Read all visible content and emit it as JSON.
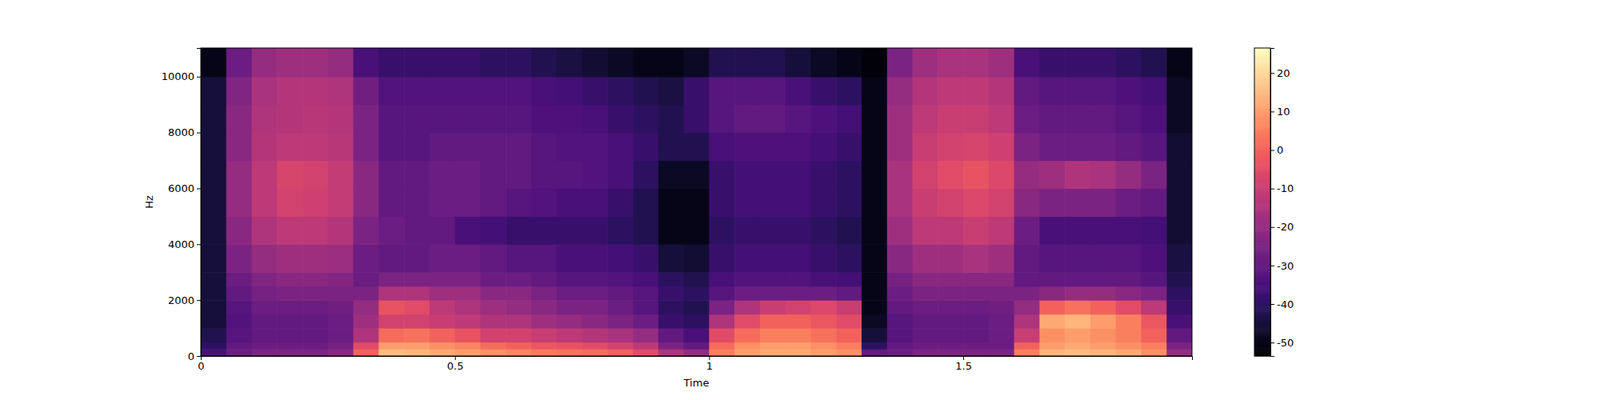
{
  "chart_data": {
    "type": "heatmap",
    "xlabel": "Time",
    "ylabel": "Hz",
    "xlim": [
      0,
      1.95
    ],
    "ylim": [
      0,
      11025
    ],
    "xticks": [
      0,
      0.5,
      1,
      1.5
    ],
    "yticks": [
      0,
      2000,
      4000,
      6000,
      8000,
      10000
    ],
    "x_bins": [
      0,
      0.05,
      0.1,
      0.15,
      0.2,
      0.25,
      0.3,
      0.35,
      0.4,
      0.45,
      0.5,
      0.55,
      0.6,
      0.65,
      0.7,
      0.75,
      0.8,
      0.85,
      0.9,
      0.95,
      1,
      1.05,
      1.1,
      1.15,
      1.2,
      1.25,
      1.3,
      1.35,
      1.4,
      1.45,
      1.5,
      1.55,
      1.6,
      1.65,
      1.7,
      1.75,
      1.8,
      1.85,
      1.9,
      1.95
    ],
    "y_bins": [
      0,
      250,
      500,
      1000,
      1500,
      2000,
      2500,
      3000,
      4000,
      5000,
      6000,
      7000,
      8000,
      9000,
      10000,
      11025
    ],
    "values": [
      [
        -35,
        -40,
        -42,
        -45,
        -45,
        -45,
        -45,
        -45,
        -45,
        -45,
        -45,
        -45,
        -45,
        -45,
        -50
      ],
      [
        -28,
        -30,
        -32,
        -33,
        -32,
        -30,
        -28,
        -25,
        -22,
        -20,
        -20,
        -22,
        -22,
        -24,
        -28
      ],
      [
        -25,
        -28,
        -30,
        -30,
        -28,
        -26,
        -24,
        -20,
        -15,
        -12,
        -12,
        -14,
        -15,
        -16,
        -20
      ],
      [
        -25,
        -28,
        -30,
        -30,
        -28,
        -25,
        -22,
        -18,
        -12,
        -8,
        -7,
        -12,
        -14,
        -14,
        -18
      ],
      [
        -25,
        -28,
        -30,
        -30,
        -28,
        -25,
        -22,
        -18,
        -12,
        -9,
        -8,
        -12,
        -13,
        -14,
        -18
      ],
      [
        -22,
        -26,
        -28,
        -28,
        -27,
        -25,
        -23,
        -19,
        -14,
        -11,
        -11,
        -13,
        -14,
        -15,
        -20
      ],
      [
        0,
        -5,
        -15,
        -18,
        -20,
        -25,
        -28,
        -28,
        -25,
        -22,
        -22,
        -25,
        -25,
        -27,
        -35
      ],
      [
        15,
        10,
        2,
        -8,
        -3,
        -15,
        -25,
        -30,
        -28,
        -30,
        -30,
        -32,
        -32,
        -33,
        -38
      ],
      [
        14,
        10,
        3,
        -8,
        -5,
        -15,
        -25,
        -30,
        -30,
        -30,
        -30,
        -32,
        -32,
        -33,
        -38
      ],
      [
        12,
        8,
        0,
        -10,
        -12,
        -18,
        -25,
        -28,
        -30,
        -28,
        -28,
        -30,
        -32,
        -33,
        -38
      ],
      [
        10,
        6,
        -3,
        -12,
        -15,
        -18,
        -25,
        -28,
        -35,
        -28,
        -28,
        -30,
        -32,
        -33,
        -38
      ],
      [
        8,
        2,
        -8,
        -15,
        -18,
        -22,
        -28,
        -30,
        -36,
        -30,
        -30,
        -30,
        -32,
        -33,
        -40
      ],
      [
        6,
        0,
        -8,
        -15,
        -20,
        -22,
        -28,
        -32,
        -38,
        -32,
        -30,
        -30,
        -32,
        -33,
        -40
      ],
      [
        4,
        -2,
        -10,
        -18,
        -22,
        -25,
        -30,
        -32,
        -38,
        -33,
        -32,
        -32,
        -34,
        -35,
        -42
      ],
      [
        3,
        -3,
        -12,
        -20,
        -25,
        -28,
        -32,
        -35,
        -38,
        -35,
        -32,
        -33,
        -34,
        -36,
        -44
      ],
      [
        2,
        -5,
        -14,
        -22,
        -25,
        -28,
        -32,
        -35,
        -38,
        -35,
        -33,
        -33,
        -35,
        -38,
        -46
      ],
      [
        0,
        -8,
        -16,
        -25,
        -28,
        -30,
        -33,
        -36,
        -40,
        -38,
        -35,
        -35,
        -38,
        -40,
        -48
      ],
      [
        -5,
        -12,
        -20,
        -28,
        -32,
        -32,
        -35,
        -38,
        -42,
        -42,
        -40,
        -38,
        -40,
        -42,
        -50
      ],
      [
        -15,
        -25,
        -30,
        -38,
        -40,
        -38,
        -40,
        -45,
        -50,
        -50,
        -48,
        -42,
        -42,
        -44,
        -50
      ],
      [
        -20,
        -30,
        -35,
        -40,
        -42,
        -40,
        -42,
        -46,
        -50,
        -50,
        -48,
        -42,
        -38,
        -38,
        -48
      ],
      [
        5,
        2,
        -5,
        -15,
        -25,
        -32,
        -35,
        -38,
        -40,
        -38,
        -38,
        -35,
        -32,
        -32,
        -42
      ],
      [
        10,
        8,
        2,
        -5,
        -15,
        -28,
        -33,
        -36,
        -38,
        -36,
        -36,
        -34,
        -30,
        -32,
        -42
      ],
      [
        12,
        10,
        5,
        0,
        -10,
        -28,
        -33,
        -36,
        -38,
        -36,
        -36,
        -34,
        -30,
        -32,
        -42
      ],
      [
        12,
        10,
        5,
        0,
        -8,
        -28,
        -33,
        -36,
        -38,
        -36,
        -36,
        -34,
        -32,
        -35,
        -45
      ],
      [
        10,
        8,
        3,
        -2,
        -6,
        -28,
        -35,
        -38,
        -40,
        -38,
        -38,
        -36,
        -34,
        -38,
        -48
      ],
      [
        8,
        5,
        0,
        -5,
        -10,
        -30,
        -36,
        -40,
        -42,
        -40,
        -40,
        -38,
        -36,
        -40,
        -50
      ],
      [
        -30,
        -40,
        -45,
        -48,
        -50,
        -50,
        -50,
        -50,
        -50,
        -50,
        -50,
        -50,
        -50,
        -50,
        -52
      ],
      [
        -28,
        -30,
        -32,
        -32,
        -30,
        -28,
        -26,
        -22,
        -18,
        -16,
        -16,
        -18,
        -18,
        -20,
        -25
      ],
      [
        -25,
        -28,
        -30,
        -30,
        -28,
        -25,
        -22,
        -18,
        -12,
        -10,
        -8,
        -10,
        -12,
        -14,
        -18
      ],
      [
        -25,
        -28,
        -30,
        -30,
        -28,
        -25,
        -22,
        -18,
        -12,
        -8,
        -5,
        -8,
        -10,
        -12,
        -16
      ],
      [
        -25,
        -28,
        -30,
        -30,
        -28,
        -25,
        -22,
        -16,
        -10,
        -6,
        -3,
        -7,
        -10,
        -12,
        -16
      ],
      [
        -25,
        -28,
        -28,
        -28,
        -27,
        -25,
        -22,
        -18,
        -12,
        -8,
        -6,
        -9,
        -12,
        -14,
        -18
      ],
      [
        5,
        0,
        -10,
        -15,
        -20,
        -25,
        -30,
        -30,
        -28,
        -22,
        -20,
        -25,
        -28,
        -30,
        -35
      ],
      [
        14,
        10,
        8,
        12,
        0,
        -22,
        -30,
        -32,
        -35,
        -25,
        -18,
        -28,
        -30,
        -32,
        -38
      ],
      [
        15,
        12,
        10,
        14,
        3,
        -20,
        -30,
        -32,
        -35,
        -25,
        -15,
        -28,
        -30,
        -32,
        -38
      ],
      [
        14,
        10,
        8,
        10,
        0,
        -20,
        -30,
        -32,
        -35,
        -25,
        -16,
        -28,
        -30,
        -32,
        -38
      ],
      [
        12,
        8,
        5,
        5,
        -5,
        -22,
        -30,
        -32,
        -35,
        -28,
        -20,
        -30,
        -32,
        -34,
        -40
      ],
      [
        8,
        5,
        0,
        -2,
        -12,
        -25,
        -32,
        -34,
        -36,
        -30,
        -25,
        -32,
        -34,
        -36,
        -42
      ],
      [
        -20,
        -25,
        -30,
        -35,
        -38,
        -40,
        -42,
        -44,
        -46,
        -46,
        -46,
        -46,
        -48,
        -48,
        -50
      ]
    ],
    "colorbar_range": [
      -53.5,
      26.5
    ],
    "colorbar_ticks": [
      -50,
      -40,
      -30,
      -20,
      -10,
      0,
      10,
      20
    ]
  }
}
